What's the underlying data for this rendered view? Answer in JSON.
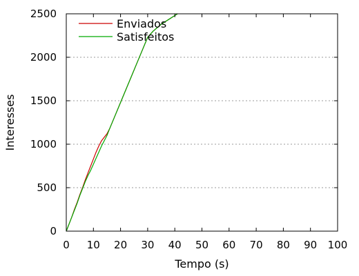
{
  "chart_data": {
    "type": "line",
    "title": "",
    "xlabel": "Tempo (s)",
    "ylabel": "Interesses",
    "xlim": [
      0,
      100
    ],
    "ylim": [
      0,
      2500
    ],
    "xticks": [
      0,
      10,
      20,
      30,
      40,
      50,
      60,
      70,
      80,
      90,
      100
    ],
    "yticks": [
      0,
      500,
      1000,
      1500,
      2000,
      2500
    ],
    "grid": "horizontal-dashed",
    "legend_position": "top-left",
    "series": [
      {
        "name": "Enviados",
        "color": "#cc0000",
        "x": [
          0,
          1,
          2,
          3,
          4,
          5,
          6,
          7,
          8,
          9,
          10,
          11,
          12,
          13,
          14,
          15,
          16,
          18,
          20,
          22,
          24,
          26,
          28,
          30,
          32,
          35,
          38,
          40,
          41
        ],
        "y": [
          0,
          80,
          160,
          250,
          330,
          420,
          500,
          590,
          670,
          750,
          830,
          910,
          980,
          1040,
          1080,
          1120,
          1180,
          1330,
          1480,
          1630,
          1780,
          1930,
          2080,
          2230,
          2300,
          2380,
          2440,
          2480,
          2500
        ]
      },
      {
        "name": "Satisfeitos",
        "color": "#00aa00",
        "x": [
          0,
          1,
          2,
          3,
          4,
          5,
          6,
          7,
          8,
          9,
          10,
          11,
          12,
          13,
          14,
          15,
          16,
          18,
          20,
          22,
          24,
          26,
          28,
          30,
          32,
          35,
          38,
          40,
          41
        ],
        "y": [
          0,
          80,
          160,
          240,
          320,
          410,
          490,
          570,
          640,
          700,
          770,
          840,
          910,
          980,
          1040,
          1100,
          1180,
          1330,
          1480,
          1630,
          1780,
          1930,
          2080,
          2230,
          2300,
          2380,
          2440,
          2480,
          2500
        ]
      }
    ]
  }
}
